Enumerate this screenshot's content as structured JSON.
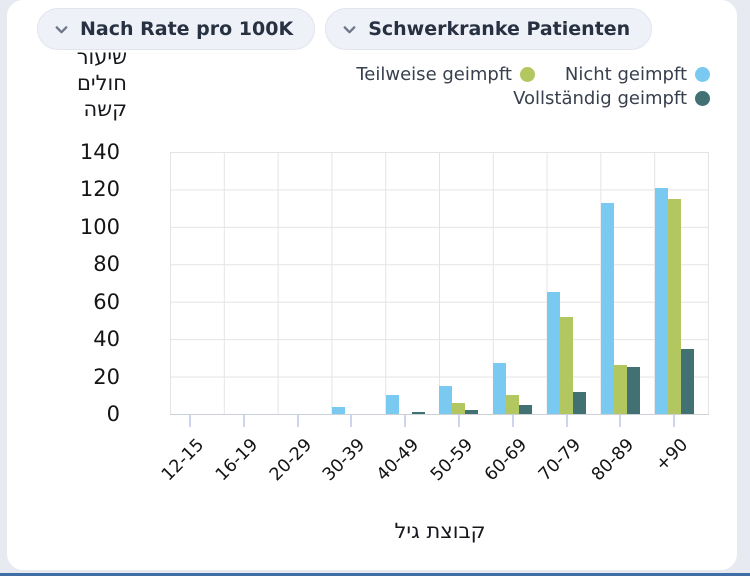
{
  "toolbar": {
    "filters": [
      {
        "label": "Nach Rate pro 100K"
      },
      {
        "label": "Schwerkranke Patienten"
      }
    ]
  },
  "colors": {
    "accent_bar": "#3f6fa6",
    "card_background": "#ffffff",
    "page_background": "#e8eaf1"
  },
  "chart_data": {
    "type": "bar",
    "ylabel": "שיעור חולים קשה",
    "ylabel_lines": [
      "שיעור",
      "חולים",
      "קשה"
    ],
    "xlabel": "קבוצת גיל",
    "categories": [
      "12-15",
      "16-19",
      "20-29",
      "30-39",
      "40-49",
      "50-59",
      "60-69",
      "70-79",
      "80-89",
      "+90"
    ],
    "series": [
      {
        "name": "Nicht geimpft",
        "color": "#79c9f1",
        "values": [
          0,
          0,
          0,
          4,
          10,
          15,
          27,
          65,
          113,
          121
        ]
      },
      {
        "name": "Teilweise geimpft",
        "color": "#b2c75f",
        "values": [
          0,
          0,
          0,
          0,
          0,
          6,
          10,
          52,
          26,
          115
        ]
      },
      {
        "name": "Vollständig geimpft",
        "color": "#417173",
        "values": [
          0,
          0,
          0,
          0,
          1,
          2,
          5,
          12,
          25,
          35
        ]
      }
    ],
    "legend": [
      {
        "label": "Teilweise geimpft",
        "color": "#b2c75f"
      },
      {
        "label": "Nicht geimpft",
        "color": "#79c9f1"
      },
      {
        "label": "Vollständig geimpft",
        "color": "#417173"
      }
    ],
    "ylim": [
      0,
      140
    ],
    "yticks": [
      140,
      120,
      100,
      80,
      60,
      40,
      20,
      0
    ],
    "grid": true,
    "legend_position": "top-right"
  }
}
